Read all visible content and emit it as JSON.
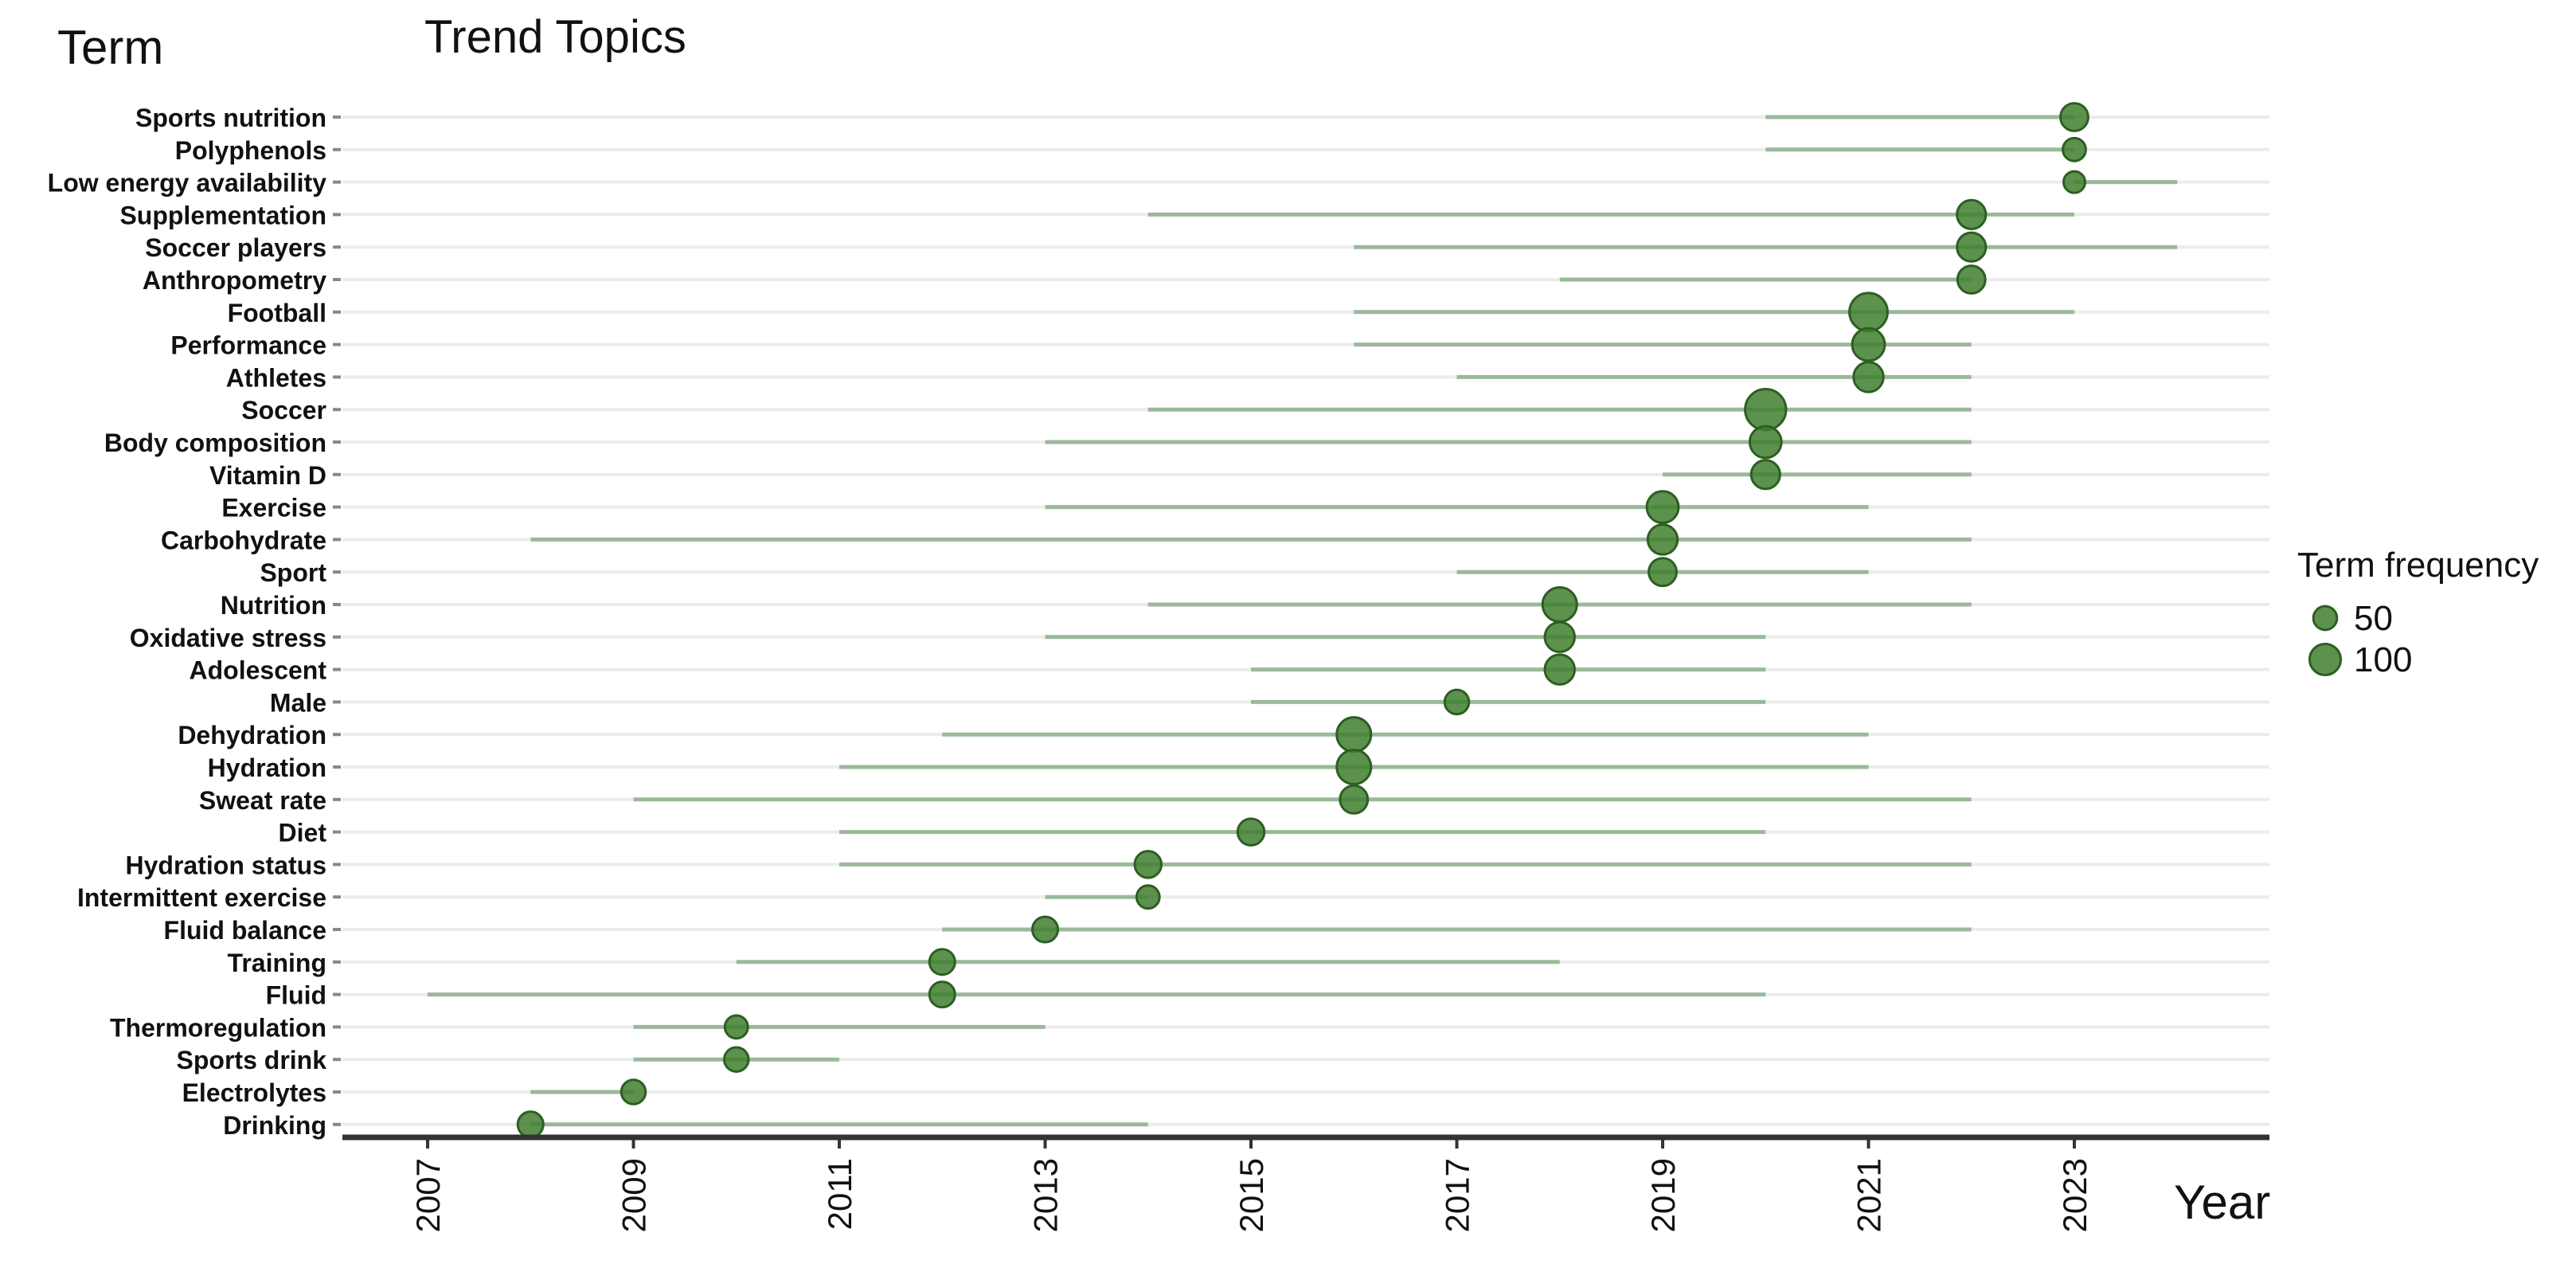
{
  "chart_data": {
    "type": "scatter",
    "title": "Trend Topics",
    "ylabel": "Term",
    "xlabel": "Year",
    "x_ticks": [
      2007,
      2009,
      2011,
      2013,
      2015,
      2017,
      2019,
      2021,
      2023
    ],
    "xlim": [
      2006.2,
      2024.8
    ],
    "grid": true,
    "legend_position": "right",
    "colors": {
      "dot_fill": "#3f7f2f",
      "dot_stroke": "#2d5e22",
      "range_line": "#9bb99a",
      "grid": "#ececec",
      "axis": "#333333"
    },
    "terms": [
      {
        "term": "Sports nutrition",
        "start": 2020,
        "median": 2023,
        "end": 2023,
        "freq": 50
      },
      {
        "term": "Polyphenols",
        "start": 2020,
        "median": 2023,
        "end": 2023,
        "freq": 30
      },
      {
        "term": "Low energy availability",
        "start": 2023,
        "median": 2023,
        "end": 2024,
        "freq": 25
      },
      {
        "term": "Supplementation",
        "start": 2014,
        "median": 2022,
        "end": 2023,
        "freq": 55
      },
      {
        "term": "Soccer players",
        "start": 2016,
        "median": 2022,
        "end": 2024,
        "freq": 55
      },
      {
        "term": "Anthropometry",
        "start": 2018,
        "median": 2022,
        "end": 2022,
        "freq": 50
      },
      {
        "term": "Football",
        "start": 2016,
        "median": 2021,
        "end": 2023,
        "freq": 110
      },
      {
        "term": "Performance",
        "start": 2016,
        "median": 2021,
        "end": 2022,
        "freq": 75
      },
      {
        "term": "Athletes",
        "start": 2017,
        "median": 2021,
        "end": 2022,
        "freq": 60
      },
      {
        "term": "Soccer",
        "start": 2014,
        "median": 2020,
        "end": 2022,
        "freq": 130
      },
      {
        "term": "Body composition",
        "start": 2013,
        "median": 2020,
        "end": 2022,
        "freq": 70
      },
      {
        "term": "Vitamin D",
        "start": 2019,
        "median": 2020,
        "end": 2022,
        "freq": 55
      },
      {
        "term": "Exercise",
        "start": 2013,
        "median": 2019,
        "end": 2021,
        "freq": 70
      },
      {
        "term": "Carbohydrate",
        "start": 2008,
        "median": 2019,
        "end": 2022,
        "freq": 60
      },
      {
        "term": "Sport",
        "start": 2017,
        "median": 2019,
        "end": 2021,
        "freq": 50
      },
      {
        "term": "Nutrition",
        "start": 2014,
        "median": 2018,
        "end": 2022,
        "freq": 85
      },
      {
        "term": "Oxidative stress",
        "start": 2013,
        "median": 2018,
        "end": 2020,
        "freq": 60
      },
      {
        "term": "Adolescent",
        "start": 2015,
        "median": 2018,
        "end": 2020,
        "freq": 60
      },
      {
        "term": "Male",
        "start": 2015,
        "median": 2017,
        "end": 2020,
        "freq": 35
      },
      {
        "term": "Dehydration",
        "start": 2012,
        "median": 2016,
        "end": 2021,
        "freq": 85
      },
      {
        "term": "Hydration",
        "start": 2011,
        "median": 2016,
        "end": 2021,
        "freq": 85
      },
      {
        "term": "Sweat rate",
        "start": 2009,
        "median": 2016,
        "end": 2022,
        "freq": 50
      },
      {
        "term": "Diet",
        "start": 2011,
        "median": 2015,
        "end": 2020,
        "freq": 45
      },
      {
        "term": "Hydration status",
        "start": 2011,
        "median": 2014,
        "end": 2022,
        "freq": 45
      },
      {
        "term": "Intermittent exercise",
        "start": 2013,
        "median": 2014,
        "end": 2014,
        "freq": 30
      },
      {
        "term": "Fluid balance",
        "start": 2012,
        "median": 2013,
        "end": 2022,
        "freq": 40
      },
      {
        "term": "Training",
        "start": 2010,
        "median": 2012,
        "end": 2018,
        "freq": 40
      },
      {
        "term": "Fluid",
        "start": 2007,
        "median": 2012,
        "end": 2020,
        "freq": 40
      },
      {
        "term": "Thermoregulation",
        "start": 2009,
        "median": 2010,
        "end": 2013,
        "freq": 30
      },
      {
        "term": "Sports drink",
        "start": 2009,
        "median": 2010,
        "end": 2011,
        "freq": 35
      },
      {
        "term": "Electrolytes",
        "start": 2008,
        "median": 2009,
        "end": 2009,
        "freq": 35
      },
      {
        "term": "Drinking",
        "start": 2008,
        "median": 2008,
        "end": 2014,
        "freq": 40
      }
    ],
    "legend": {
      "title": "Term frequency",
      "entries": [
        {
          "label": "50",
          "value": 50
        },
        {
          "label": "100",
          "value": 100
        }
      ]
    }
  }
}
